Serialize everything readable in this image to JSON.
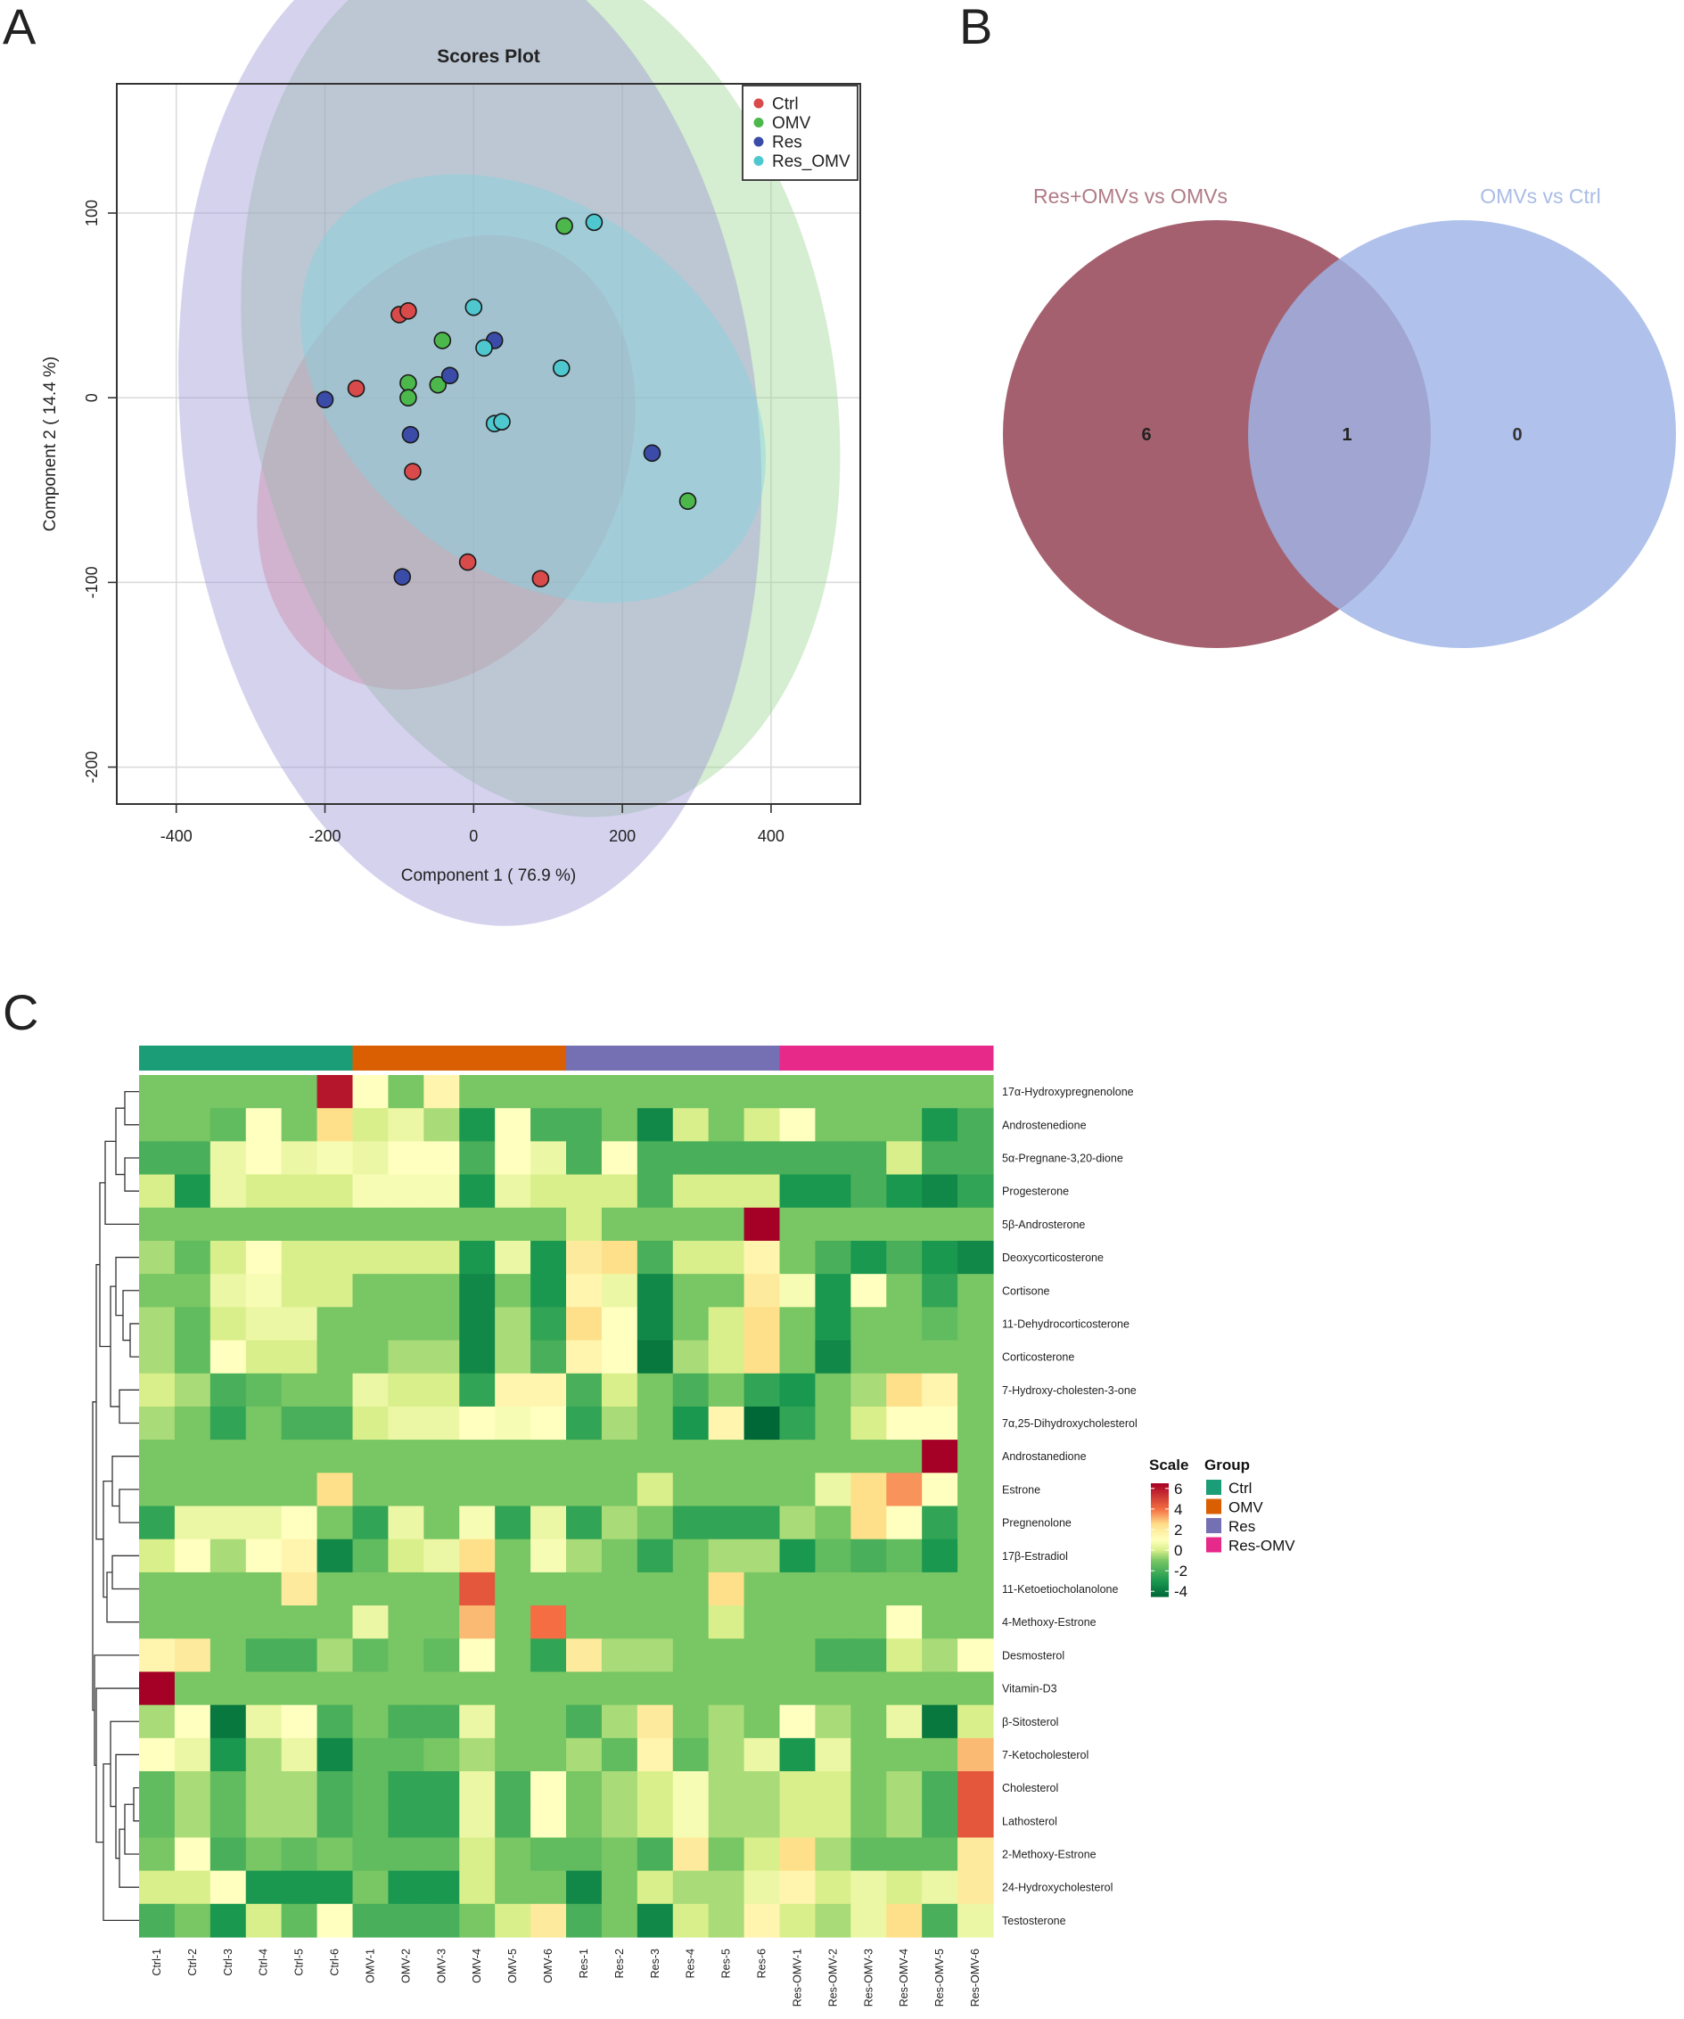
{
  "panels": {
    "a": "A",
    "b": "B",
    "c": "C"
  },
  "chart_data": [
    {
      "type": "scatter",
      "title": "Scores Plot",
      "xlabel": "Component 1 ( 76.9 %)",
      "ylabel": "Component 2 ( 14.4 %)",
      "xlim": [
        -480,
        520
      ],
      "ylim": [
        -220,
        170
      ],
      "xticks": [
        -400,
        -200,
        0,
        200,
        400
      ],
      "yticks": [
        100,
        0,
        -100,
        -200
      ],
      "xtick_labels": [
        "-400",
        "-200",
        "0",
        "200",
        "400"
      ],
      "ytick_labels": [
        "100",
        "0",
        "-100",
        "-200"
      ],
      "grid": true,
      "legend_position": "top-right",
      "series": [
        {
          "name": "Ctrl",
          "color": "#d94a4a",
          "fill": "#f08080",
          "points": [
            [
              -100,
              45
            ],
            [
              -88,
              47
            ],
            [
              -158,
              5
            ],
            [
              -82,
              -40
            ],
            [
              -8,
              -89
            ],
            [
              90,
              -98
            ]
          ],
          "ellipse": {
            "cx": -37,
            "cy": -35,
            "rx": 320,
            "ry": 95,
            "angle_deg": -64
          }
        },
        {
          "name": "OMV",
          "color": "#4cb84c",
          "fill": "#9bd38f",
          "points": [
            [
              122,
              93
            ],
            [
              -42,
              31
            ],
            [
              -88,
              8
            ],
            [
              -48,
              7
            ],
            [
              -88,
              0
            ],
            [
              288,
              -56
            ]
          ],
          "ellipse": {
            "cx": 90,
            "cy": 10,
            "rx": 392,
            "ry": 240,
            "angle_deg": -12
          }
        },
        {
          "name": "Res",
          "color": "#3b4ba8",
          "fill": "#9a93d6",
          "points": [
            [
              -200,
              -1
            ],
            [
              -32,
              12
            ],
            [
              28,
              31
            ],
            [
              -85,
              -20
            ],
            [
              240,
              -30
            ],
            [
              -96,
              -97
            ]
          ],
          "ellipse": {
            "cx": -5,
            "cy": -17,
            "rx": 388,
            "ry": 270,
            "angle_deg": -6
          }
        },
        {
          "name": "Res_OMV",
          "color": "#4fc7cf",
          "fill": "#7fd4df",
          "points": [
            [
              162,
              95
            ],
            [
              0,
              49
            ],
            [
              14,
              27
            ],
            [
              118,
              16
            ],
            [
              28,
              -14
            ],
            [
              38,
              -13
            ]
          ],
          "ellipse": {
            "cx": 80,
            "cy": 5,
            "rx": 245,
            "ry": 140,
            "angle_deg": -52
          }
        }
      ]
    },
    {
      "type": "venn",
      "sets": [
        {
          "label": "Res+OMVs vs OMVs",
          "only": "6",
          "color": "#a5606f"
        },
        {
          "label": "OMVs vs Ctrl",
          "only": "0",
          "color": "#9fb5e6"
        }
      ],
      "intersection": "1"
    },
    {
      "type": "heatmap",
      "group_title": "Group",
      "scale_title": "Scale",
      "scale_ticks": [
        "6",
        "4",
        "2",
        "0",
        "-2",
        "-4"
      ],
      "scale_values": [
        6,
        4,
        2,
        0,
        -2,
        -4
      ],
      "scale_range": [
        -4.5,
        6.5
      ],
      "groups": [
        {
          "name": "Ctrl",
          "color": "#1b9e77"
        },
        {
          "name": "OMV",
          "color": "#d95f02"
        },
        {
          "name": "Res",
          "color": "#7570b3"
        },
        {
          "name": "Res-OMV",
          "color": "#e7298a"
        }
      ],
      "columns": [
        "Ctrl-1",
        "Ctrl-2",
        "Ctrl-3",
        "Ctrl-4",
        "Ctrl-5",
        "Ctrl-6",
        "OMV-1",
        "OMV-2",
        "OMV-3",
        "OMV-4",
        "OMV-5",
        "OMV-6",
        "Res-1",
        "Res-2",
        "Res-3",
        "Res-4",
        "Res-5",
        "Res-6",
        "Res-OMV-1",
        "Res-OMV-2",
        "Res-OMV-3",
        "Res-OMV-4",
        "Res-OMV-5",
        "Res-OMV-6"
      ],
      "rows": [
        "17α-Hydroxypregnenolone",
        "Androstenedione",
        "5α-Pregnane-3,20-dione",
        "Progesterone",
        "5β-Androsterone",
        "Deoxycorticosterone",
        "Cortisone",
        "11-Dehydrocorticosterone",
        "Corticosterone",
        "7-Hydroxy-cholesten-3-one",
        "7α,25-Dihydroxycholesterol",
        "Androstanedione",
        "Estrone",
        "Pregnenolone",
        "17β-Estradiol",
        "11-Ketoetiocholanolone",
        "4-Methoxy-Estrone",
        "Desmosterol",
        "Vitamin-D3",
        "β-Sitosterol",
        "7-Ketocholesterol",
        "Cholesterol",
        "Lathosterol",
        "2-Methoxy-Estrone",
        "24-Hydroxycholesterol",
        "Testosterone"
      ],
      "values": [
        [
          -1,
          -1,
          -1,
          -1,
          -1,
          6,
          1,
          -1,
          1.5,
          -1,
          -1,
          -1,
          -1,
          -1,
          -1,
          -1,
          -1,
          -1,
          -1,
          -1,
          -1,
          -1,
          -1,
          -1
        ],
        [
          -1,
          -1,
          -1.5,
          1,
          -1,
          2.5,
          0,
          0.5,
          -0.5,
          -3,
          1,
          -2,
          -2,
          -1,
          -3.5,
          0,
          -1,
          0,
          1,
          -1,
          -1,
          -1,
          -3,
          -2
        ],
        [
          -2,
          -2,
          0.5,
          1,
          0.5,
          0.8,
          0.5,
          1,
          1,
          -2,
          1,
          0.5,
          -2,
          1,
          -2,
          -2,
          -2,
          -2,
          -2,
          -2,
          -2,
          0,
          -2,
          -2
        ],
        [
          0,
          -3,
          0.5,
          0,
          0,
          0,
          0.8,
          0.8,
          0.8,
          -3,
          0.5,
          0,
          0,
          0,
          -2,
          0,
          0,
          0,
          -3,
          -3,
          -2,
          -3,
          -3.5,
          -2.5
        ],
        [
          -1,
          -1,
          -1,
          -1,
          -1,
          -1,
          -1,
          -1,
          -1,
          -1,
          -1,
          -1,
          0,
          -1,
          -1,
          -1,
          -1,
          6.5,
          -1,
          -1,
          -1,
          -1,
          -1,
          -1
        ],
        [
          -0.5,
          -1.5,
          0,
          1,
          0,
          0,
          0,
          0,
          0,
          -3,
          0.5,
          -3,
          2,
          2.5,
          -2,
          0,
          0,
          1.5,
          -1,
          -2,
          -3,
          -2,
          -3,
          -3.5
        ],
        [
          -1,
          -1,
          0.5,
          0.8,
          0,
          0,
          -1,
          -1,
          -1,
          -3.5,
          -1,
          -3,
          1.5,
          0.5,
          -3.5,
          -1,
          -1,
          2,
          0.8,
          -3,
          1,
          -1,
          -2.5,
          -1
        ],
        [
          -0.5,
          -1.5,
          0,
          0.5,
          0.5,
          -1,
          -1,
          -1,
          -1,
          -3.5,
          -0.5,
          -2.5,
          2.5,
          1,
          -3.5,
          -1,
          0,
          2.5,
          -1,
          -3,
          -1,
          -1,
          -1.5,
          -1
        ],
        [
          -0.5,
          -1.5,
          1,
          0,
          0,
          -1,
          -1,
          -0.5,
          -0.5,
          -3.5,
          -0.5,
          -2,
          1.5,
          1,
          -4,
          -0.5,
          0,
          2.5,
          -1,
          -3.5,
          -1,
          -1,
          -1,
          -1
        ],
        [
          0,
          -0.5,
          -2,
          -1.5,
          -1,
          -1,
          0.5,
          0,
          0,
          -2.5,
          1.5,
          1.5,
          -2,
          0,
          -1,
          -2,
          -1,
          -2.5,
          -3,
          -1,
          -0.5,
          2.5,
          1.5,
          -1
        ],
        [
          -0.5,
          -1,
          -2.5,
          -1,
          -2,
          -2,
          0,
          0.5,
          0.5,
          1,
          0.8,
          1,
          -2.5,
          -0.5,
          -1,
          -3,
          1.5,
          -4.5,
          -2.5,
          -1,
          0,
          1,
          1,
          -1
        ],
        [
          -1,
          -1,
          -1,
          -1,
          -1,
          -1,
          -1,
          -1,
          -1,
          -1,
          -1,
          -1,
          -1,
          -1,
          -1,
          -1,
          -1,
          -1,
          -1,
          -1,
          -1,
          -1,
          6.5,
          -1
        ],
        [
          -1,
          -1,
          -1,
          -1,
          -1,
          2.5,
          -1,
          -1,
          -1,
          -1,
          -1,
          -1,
          -1,
          -1,
          0,
          -1,
          -1,
          -1,
          -1,
          0.5,
          2.5,
          3.5,
          1,
          -1
        ],
        [
          -2.5,
          0.5,
          0.5,
          0.5,
          1,
          -1,
          -2.5,
          0.5,
          -1,
          0.8,
          -2.5,
          0.5,
          -2.5,
          -0.5,
          -1,
          -2.5,
          -2.5,
          -2.5,
          -0.5,
          -1,
          2.5,
          1,
          -2.5,
          -1
        ],
        [
          0,
          1,
          -0.5,
          1,
          1.5,
          -3.5,
          -1.5,
          0,
          0.5,
          2.5,
          -1,
          0.8,
          -0.5,
          -1,
          -2.5,
          -1,
          -0.5,
          -0.5,
          -3,
          -1.5,
          -2,
          -1.5,
          -3,
          -1
        ],
        [
          -1,
          -1,
          -1,
          -1,
          2,
          -1,
          -1,
          -1,
          -1,
          4.5,
          -1,
          -1,
          -1,
          -1,
          -1,
          -1,
          2.5,
          -1,
          -1,
          -1,
          -1,
          -1,
          -1,
          -1
        ],
        [
          -1,
          -1,
          -1,
          -1,
          -1,
          -1,
          0.5,
          -1,
          -1,
          3,
          -1,
          4,
          -1,
          -1,
          -1,
          -1,
          0,
          -1,
          -1,
          -1,
          -1,
          1,
          -1,
          -1
        ],
        [
          1.5,
          2,
          -1,
          -2,
          -2,
          -0.5,
          -1.5,
          -1,
          -1.5,
          1,
          -1,
          -2.5,
          2,
          -0.5,
          -0.5,
          -1,
          -1,
          -1,
          -1,
          -2,
          -2,
          0,
          -0.5,
          1
        ],
        [
          6.5,
          -1,
          -1,
          -1,
          -1,
          -1,
          -1,
          -1,
          -1,
          -1,
          -1,
          -1,
          -1,
          -1,
          -1,
          -1,
          -1,
          -1,
          -1,
          -1,
          -1,
          -1,
          -1,
          -1
        ],
        [
          -0.5,
          1,
          -4,
          0.5,
          1,
          -2,
          -1,
          -2,
          -2,
          0.5,
          -1,
          -1,
          -2,
          -0.5,
          2,
          -1,
          -0.5,
          -1,
          1,
          -0.5,
          -1,
          0.5,
          -4,
          0
        ],
        [
          1,
          0.5,
          -3,
          -0.5,
          0.5,
          -3.5,
          -1.5,
          -1.5,
          -1,
          -0.5,
          -1,
          -1,
          -0.5,
          -1.5,
          1.5,
          -1.5,
          -0.5,
          0.5,
          -3,
          0.5,
          -1,
          -1,
          -1,
          3
        ],
        [
          -1.5,
          -0.5,
          -1.5,
          -0.5,
          -0.5,
          -2,
          -1.5,
          -2.5,
          -2.5,
          0.5,
          -2,
          1,
          -1,
          -0.5,
          0,
          0.8,
          -0.5,
          -0.5,
          0,
          0,
          -1,
          -0.5,
          -2,
          4.5
        ],
        [
          -1.5,
          -0.5,
          -1.5,
          -0.5,
          -0.5,
          -2,
          -1.5,
          -2.5,
          -2.5,
          0.5,
          -2,
          1,
          -1,
          -0.5,
          0,
          0.8,
          -0.5,
          -0.5,
          0,
          0,
          -1,
          -0.5,
          -2,
          4.5
        ],
        [
          -1,
          1,
          -2,
          -1,
          -1.5,
          -1,
          -1.5,
          -1.5,
          -1.5,
          0,
          -1,
          -1.5,
          -1.5,
          -1,
          -2,
          2,
          -1,
          0,
          2.5,
          -0.5,
          -1.5,
          -1.5,
          -1.5,
          2
        ],
        [
          0,
          0,
          1,
          -3,
          -3,
          -3,
          -1,
          -3,
          -3,
          0,
          -1,
          -1,
          -3.5,
          -1,
          0,
          -0.5,
          -0.5,
          0.5,
          1.5,
          0,
          0.5,
          0,
          0.5,
          2
        ],
        [
          -2,
          -1,
          -3,
          0,
          -1.5,
          1,
          -2,
          -2,
          -2,
          -1,
          0,
          2,
          -2,
          -1,
          -3.5,
          0,
          -0.5,
          1.5,
          0,
          -0.5,
          0.5,
          2.5,
          -2,
          0.5
        ]
      ],
      "dendrogram": [
        {
          "children": [
            0,
            1
          ],
          "height": 0.8
        },
        {
          "children": [
            2,
            3
          ],
          "height": 0.8
        },
        {
          "children": [
            "n0",
            "n1"
          ],
          "height": 1.3
        },
        {
          "children": [
            "n2",
            4
          ],
          "height": 1.9
        },
        {
          "children": [
            7,
            8
          ],
          "height": 0.5
        },
        {
          "children": [
            6,
            "n4"
          ],
          "height": 0.9
        },
        {
          "children": [
            5,
            "n5"
          ],
          "height": 1.3
        },
        {
          "children": [
            9,
            10
          ],
          "height": 1.1
        },
        {
          "children": [
            "n6",
            "n7"
          ],
          "height": 1.6
        },
        {
          "children": [
            "n3",
            "n8"
          ],
          "height": 2.2
        },
        {
          "children": [
            12,
            13
          ],
          "height": 1.1
        },
        {
          "children": [
            11,
            "n10"
          ],
          "height": 1.5
        },
        {
          "children": [
            14,
            15
          ],
          "height": 1.5
        },
        {
          "children": [
            "n12",
            16
          ],
          "height": 1.8
        },
        {
          "children": [
            "n11",
            "n13"
          ],
          "height": 2.0
        },
        {
          "children": [
            "n9",
            "n14"
          ],
          "height": 2.4
        },
        {
          "children": [
            21,
            22
          ],
          "height": 0.3
        },
        {
          "children": [
            "n16",
            23
          ],
          "height": 0.8
        },
        {
          "children": [
            "n17",
            24
          ],
          "height": 1.1
        },
        {
          "children": [
            20,
            "n18"
          ],
          "height": 1.3
        },
        {
          "children": [
            19,
            "n19"
          ],
          "height": 1.6
        },
        {
          "children": [
            "n20",
            25
          ],
          "height": 2.0
        },
        {
          "children": [
            18,
            "n21"
          ],
          "height": 2.4
        },
        {
          "children": [
            17,
            "n22"
          ],
          "height": 2.5
        },
        {
          "children": [
            "n15",
            "n23"
          ],
          "height": 2.6
        }
      ]
    }
  ]
}
